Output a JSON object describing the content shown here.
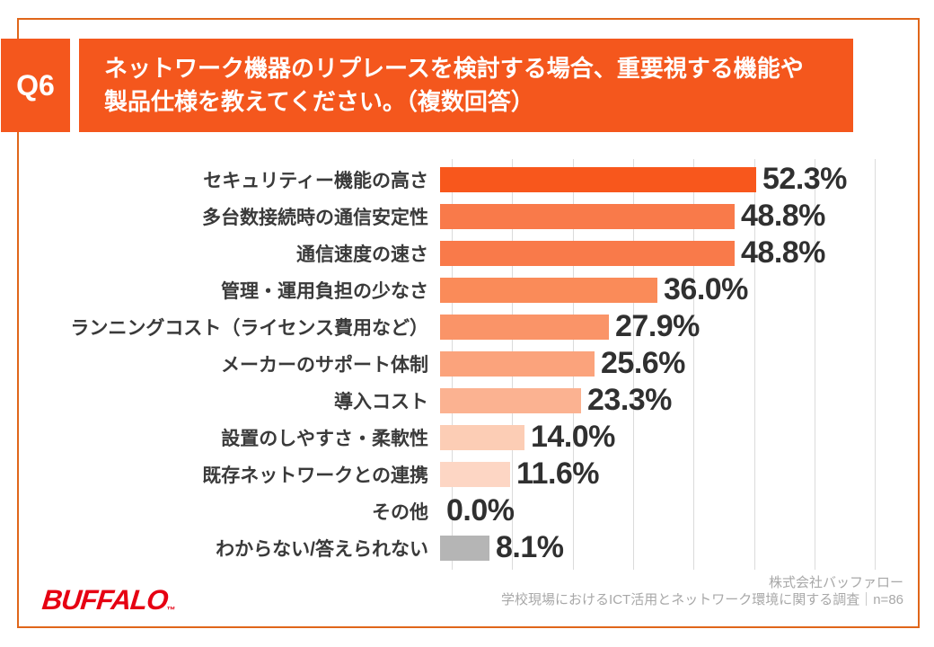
{
  "header": {
    "badge": "Q6",
    "title_line1": "ネットワーク機器のリプレースを検討する場合、重要視する機能や",
    "title_line2": "製品仕様を教えてください。（複数回答）"
  },
  "chart_data": {
    "type": "bar",
    "orientation": "horizontal",
    "unit": "%",
    "categories": [
      "セキュリティー機能の高さ",
      "多台数接続時の通信安定性",
      "通信速度の速さ",
      "管理・運用負担の少なさ",
      "ランニングコスト（ライセンス費用など）",
      "メーカーのサポート体制",
      "導入コスト",
      "設置のしやすさ・柔軟性",
      "既存ネットワークとの連携",
      "その他",
      "わからない/答えられない"
    ],
    "values": [
      52.3,
      48.8,
      48.8,
      36.0,
      27.9,
      25.6,
      23.3,
      14.0,
      11.6,
      0.0,
      8.1
    ],
    "value_labels": [
      "52.3%",
      "48.8%",
      "48.8%",
      "36.0%",
      "27.9%",
      "25.6%",
      "23.3%",
      "14.0%",
      "11.6%",
      "0.0%",
      "8.1%"
    ],
    "bar_colors": [
      "#f8571c",
      "#f97a4a",
      "#f97a4a",
      "#fa8b59",
      "#fa9468",
      "#fba37c",
      "#fbb291",
      "#fccdb5",
      "#fdd6c4",
      "none",
      "#b5b5b5"
    ],
    "xlim": [
      0,
      70
    ],
    "gridline_step": 10,
    "grid": true,
    "title": "",
    "xlabel": "",
    "ylabel": ""
  },
  "colors": {
    "accent_orange": "#f4571d",
    "card_border": "#e0661a",
    "gridline": "#dbdbdb",
    "value_text": "#303030",
    "label_text": "#3a3a3a",
    "logo_red": "#e60012",
    "source_gray": "#a8a8a8"
  },
  "footer": {
    "logo_text": "BUFFALO",
    "logo_tm": "™",
    "company": "株式会社バッファロー",
    "survey": "学校現場におけるICT活用とネットワーク環境に関する調査｜n=86"
  }
}
